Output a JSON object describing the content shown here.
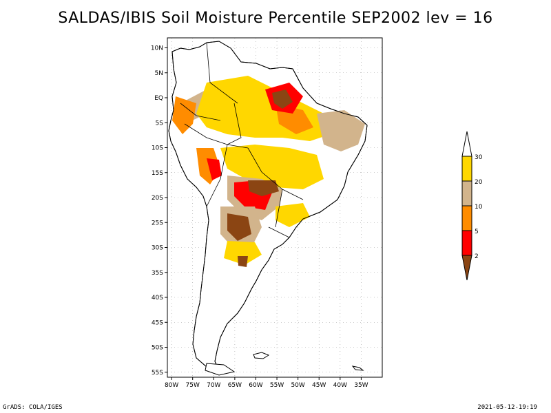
{
  "title": "SALDAS/IBIS Soil Moisture Percentile SEP2002 lev = 16",
  "footer": {
    "credit": "GrADS: COLA/IGES",
    "timestamp": "2021-05-12-19:19"
  },
  "map": {
    "lon_range": [
      -81,
      -30
    ],
    "lat_range": [
      -56,
      12
    ],
    "lat_ticks": [
      {
        "value": 10,
        "label": "10N"
      },
      {
        "value": 5,
        "label": "5N"
      },
      {
        "value": 0,
        "label": "EQ"
      },
      {
        "value": -5,
        "label": "5S"
      },
      {
        "value": -10,
        "label": "10S"
      },
      {
        "value": -15,
        "label": "15S"
      },
      {
        "value": -20,
        "label": "20S"
      },
      {
        "value": -25,
        "label": "25S"
      },
      {
        "value": -30,
        "label": "30S"
      },
      {
        "value": -35,
        "label": "35S"
      },
      {
        "value": -40,
        "label": "40S"
      },
      {
        "value": -45,
        "label": "45S"
      },
      {
        "value": -50,
        "label": "50S"
      },
      {
        "value": -55,
        "label": "55S"
      }
    ],
    "lon_ticks": [
      {
        "value": -80,
        "label": "80W"
      },
      {
        "value": -75,
        "label": "75W"
      },
      {
        "value": -70,
        "label": "70W"
      },
      {
        "value": -65,
        "label": "65W"
      },
      {
        "value": -60,
        "label": "60W"
      },
      {
        "value": -55,
        "label": "55W"
      },
      {
        "value": -50,
        "label": "50W"
      },
      {
        "value": -45,
        "label": "45W"
      },
      {
        "value": -40,
        "label": "40W"
      },
      {
        "value": -35,
        "label": "35W"
      }
    ],
    "grid": true
  },
  "legend": {
    "bins": [
      {
        "color": "#8B4513",
        "label": "2"
      },
      {
        "color": "#FF0000",
        "label": "5"
      },
      {
        "color": "#FF8C00",
        "label": "10"
      },
      {
        "color": "#D2B48C",
        "label": "20"
      },
      {
        "color": "#FFD700",
        "label": "30"
      },
      {
        "color": "#FFFFFF",
        "label": ""
      }
    ]
  }
}
